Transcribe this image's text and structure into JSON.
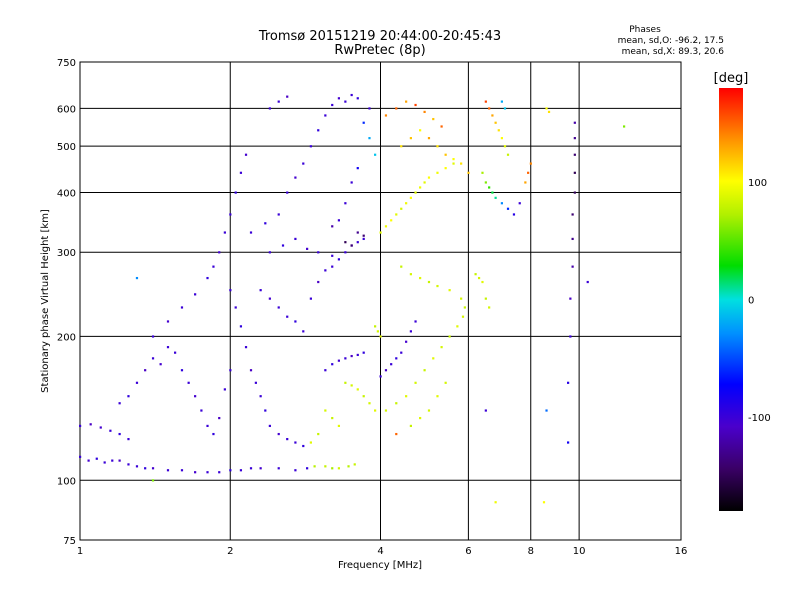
{
  "chart_data": {
    "type": "scatter",
    "title": "Tromsø 20151219 20:44:00-20:45:43",
    "subtitle": "RwPretec (8p)",
    "xlabel": "Frequency [MHz]",
    "ylabel": "Stationary phase Virtual Height [km]",
    "xscale": "log",
    "yscale": "log",
    "xlim": [
      1,
      16
    ],
    "ylim": [
      75,
      750
    ],
    "xticks": [
      1,
      2,
      4,
      6,
      8,
      10,
      16
    ],
    "yticks": [
      75,
      100,
      200,
      300,
      400,
      500,
      600,
      750
    ],
    "grid_x": [
      2,
      4,
      6,
      8,
      10
    ],
    "grid_y": [
      100,
      200,
      300,
      400,
      500,
      600
    ],
    "stats_title": "Phases",
    "stats_lines": [
      "mean, sd,O:  -96.2, 17.5",
      "mean, sd,X:  89.3, 20.6"
    ],
    "colorbar": {
      "label": "[deg]",
      "range": [
        -180,
        180
      ],
      "ticks": [
        100,
        0,
        -100
      ]
    },
    "points_note": "representative sample of the scattered points; color = phase in degrees",
    "points": [
      [
        1.0,
        130,
        -100
      ],
      [
        1.05,
        131,
        -110
      ],
      [
        1.1,
        129,
        -105
      ],
      [
        1.15,
        127,
        -100
      ],
      [
        1.2,
        125,
        -95
      ],
      [
        1.25,
        122,
        -100
      ],
      [
        1.0,
        112,
        -100
      ],
      [
        1.04,
        110,
        -105
      ],
      [
        1.08,
        111,
        -95
      ],
      [
        1.12,
        109,
        -100
      ],
      [
        1.16,
        110,
        -100
      ],
      [
        1.2,
        110,
        -110
      ],
      [
        1.25,
        108,
        -100
      ],
      [
        1.3,
        107,
        -100
      ],
      [
        1.35,
        106,
        -95
      ],
      [
        1.4,
        106,
        -105
      ],
      [
        1.5,
        105,
        -100
      ],
      [
        1.6,
        105,
        -100
      ],
      [
        1.7,
        104,
        -105
      ],
      [
        1.8,
        104,
        -100
      ],
      [
        1.9,
        104,
        -100
      ],
      [
        2.0,
        105,
        -95
      ],
      [
        2.1,
        105,
        -100
      ],
      [
        2.2,
        106,
        -100
      ],
      [
        2.3,
        106,
        -105
      ],
      [
        2.5,
        106,
        -100
      ],
      [
        2.7,
        105,
        -100
      ],
      [
        2.85,
        106,
        -95
      ],
      [
        2.95,
        107,
        75
      ],
      [
        3.1,
        107,
        80
      ],
      [
        3.2,
        106,
        70
      ],
      [
        3.3,
        106,
        85
      ],
      [
        3.45,
        107,
        75
      ],
      [
        3.55,
        108,
        80
      ],
      [
        1.2,
        145,
        -100
      ],
      [
        1.25,
        150,
        -95
      ],
      [
        1.3,
        160,
        -100
      ],
      [
        1.35,
        170,
        -110
      ],
      [
        1.4,
        180,
        -100
      ],
      [
        1.45,
        175,
        -105
      ],
      [
        1.5,
        190,
        -100
      ],
      [
        1.55,
        185,
        -100
      ],
      [
        1.6,
        170,
        -95
      ],
      [
        1.65,
        160,
        -100
      ],
      [
        1.7,
        150,
        -105
      ],
      [
        1.75,
        140,
        -100
      ],
      [
        1.8,
        130,
        -100
      ],
      [
        1.85,
        125,
        -95
      ],
      [
        1.9,
        135,
        -110
      ],
      [
        1.95,
        155,
        -100
      ],
      [
        2.0,
        170,
        -100
      ],
      [
        1.4,
        200,
        -100
      ],
      [
        1.5,
        215,
        -105
      ],
      [
        1.6,
        230,
        -100
      ],
      [
        1.7,
        245,
        -100
      ],
      [
        1.8,
        265,
        -95
      ],
      [
        1.85,
        280,
        -100
      ],
      [
        1.9,
        300,
        -105
      ],
      [
        1.95,
        330,
        -100
      ],
      [
        2.0,
        360,
        -100
      ],
      [
        2.05,
        400,
        -95
      ],
      [
        2.1,
        440,
        -100
      ],
      [
        2.15,
        480,
        -105
      ],
      [
        2.0,
        250,
        -100
      ],
      [
        2.05,
        230,
        -100
      ],
      [
        2.1,
        210,
        -95
      ],
      [
        2.15,
        190,
        -100
      ],
      [
        2.2,
        170,
        -110
      ],
      [
        2.25,
        160,
        -100
      ],
      [
        2.3,
        150,
        -100
      ],
      [
        2.35,
        140,
        -95
      ],
      [
        2.4,
        130,
        -100
      ],
      [
        2.5,
        125,
        -105
      ],
      [
        2.6,
        122,
        -100
      ],
      [
        2.7,
        120,
        -100
      ],
      [
        2.8,
        118,
        -95
      ],
      [
        2.3,
        250,
        -100
      ],
      [
        2.4,
        240,
        -105
      ],
      [
        2.5,
        230,
        -100
      ],
      [
        2.6,
        220,
        -100
      ],
      [
        2.7,
        215,
        -95
      ],
      [
        2.8,
        205,
        -100
      ],
      [
        2.9,
        240,
        -100
      ],
      [
        3.0,
        260,
        -110
      ],
      [
        3.1,
        275,
        -100
      ],
      [
        3.2,
        280,
        -100
      ],
      [
        3.3,
        290,
        -95
      ],
      [
        3.4,
        300,
        -100
      ],
      [
        3.5,
        310,
        -105
      ],
      [
        3.6,
        315,
        -100
      ],
      [
        3.7,
        320,
        -100
      ],
      [
        2.4,
        300,
        -100
      ],
      [
        2.55,
        310,
        -95
      ],
      [
        2.7,
        320,
        -100
      ],
      [
        2.85,
        305,
        -105
      ],
      [
        3.0,
        300,
        -100
      ],
      [
        3.2,
        295,
        -100
      ],
      [
        2.2,
        330,
        -100
      ],
      [
        2.35,
        345,
        -95
      ],
      [
        2.5,
        360,
        -100
      ],
      [
        2.6,
        400,
        -100
      ],
      [
        2.7,
        430,
        -105
      ],
      [
        2.8,
        460,
        -100
      ],
      [
        2.9,
        500,
        -100
      ],
      [
        3.0,
        540,
        -95
      ],
      [
        3.1,
        580,
        -100
      ],
      [
        3.2,
        610,
        -100
      ],
      [
        3.3,
        630,
        -105
      ],
      [
        3.4,
        620,
        -100
      ],
      [
        3.5,
        640,
        -100
      ],
      [
        3.6,
        630,
        -95
      ],
      [
        2.4,
        600,
        -100
      ],
      [
        2.5,
        620,
        -100
      ],
      [
        2.6,
        635,
        -110
      ],
      [
        3.8,
        600,
        -100
      ],
      [
        3.7,
        560,
        -60
      ],
      [
        3.8,
        520,
        -20
      ],
      [
        3.9,
        480,
        -10
      ],
      [
        3.6,
        450,
        -80
      ],
      [
        3.5,
        420,
        -100
      ],
      [
        3.4,
        380,
        -100
      ],
      [
        3.3,
        350,
        -100
      ],
      [
        3.2,
        340,
        -120
      ],
      [
        3.6,
        330,
        -130
      ],
      [
        3.7,
        325,
        -140
      ],
      [
        3.4,
        315,
        -150
      ],
      [
        3.5,
        310,
        -140
      ],
      [
        4.0,
        330,
        90
      ],
      [
        4.1,
        340,
        95
      ],
      [
        4.2,
        350,
        100
      ],
      [
        4.3,
        360,
        90
      ],
      [
        4.4,
        370,
        85
      ],
      [
        4.5,
        380,
        95
      ],
      [
        4.6,
        390,
        100
      ],
      [
        4.7,
        400,
        90
      ],
      [
        4.8,
        410,
        95
      ],
      [
        4.9,
        420,
        90
      ],
      [
        5.0,
        430,
        100
      ],
      [
        5.2,
        440,
        95
      ],
      [
        5.4,
        450,
        100
      ],
      [
        5.6,
        460,
        90
      ],
      [
        4.1,
        580,
        140
      ],
      [
        4.3,
        600,
        150
      ],
      [
        4.5,
        620,
        130
      ],
      [
        4.7,
        610,
        160
      ],
      [
        4.9,
        590,
        140
      ],
      [
        5.1,
        570,
        120
      ],
      [
        5.3,
        550,
        150
      ],
      [
        4.4,
        500,
        110
      ],
      [
        4.6,
        520,
        120
      ],
      [
        4.8,
        540,
        100
      ],
      [
        5.0,
        520,
        130
      ],
      [
        5.2,
        500,
        110
      ],
      [
        5.4,
        480,
        120
      ],
      [
        5.6,
        470,
        100
      ],
      [
        5.8,
        460,
        110
      ],
      [
        6.0,
        440,
        120
      ],
      [
        4.4,
        280,
        80
      ],
      [
        4.6,
        270,
        85
      ],
      [
        4.8,
        265,
        90
      ],
      [
        5.0,
        260,
        80
      ],
      [
        5.2,
        255,
        85
      ],
      [
        5.5,
        250,
        90
      ],
      [
        5.8,
        240,
        85
      ],
      [
        5.9,
        230,
        80
      ],
      [
        5.85,
        220,
        85
      ],
      [
        5.7,
        210,
        90
      ],
      [
        5.5,
        200,
        80
      ],
      [
        5.3,
        190,
        85
      ],
      [
        5.1,
        180,
        90
      ],
      [
        4.9,
        170,
        80
      ],
      [
        4.7,
        160,
        85
      ],
      [
        4.5,
        150,
        90
      ],
      [
        4.3,
        145,
        80
      ],
      [
        4.1,
        140,
        85
      ],
      [
        3.9,
        210,
        80
      ],
      [
        3.95,
        205,
        85
      ],
      [
        4.0,
        200,
        90
      ],
      [
        3.4,
        160,
        80
      ],
      [
        3.5,
        158,
        85
      ],
      [
        3.6,
        155,
        90
      ],
      [
        3.7,
        150,
        80
      ],
      [
        3.8,
        145,
        85
      ],
      [
        3.9,
        140,
        90
      ],
      [
        3.1,
        140,
        85
      ],
      [
        3.2,
        135,
        80
      ],
      [
        3.3,
        130,
        90
      ],
      [
        4.0,
        165,
        -100
      ],
      [
        4.1,
        170,
        -110
      ],
      [
        4.2,
        175,
        -100
      ],
      [
        4.3,
        180,
        -95
      ],
      [
        4.4,
        185,
        -100
      ],
      [
        4.5,
        195,
        -105
      ],
      [
        4.6,
        205,
        -100
      ],
      [
        4.7,
        215,
        -100
      ],
      [
        3.1,
        170,
        -100
      ],
      [
        3.2,
        175,
        -95
      ],
      [
        3.3,
        178,
        -105
      ],
      [
        3.4,
        180,
        -100
      ],
      [
        3.5,
        182,
        -110
      ],
      [
        3.6,
        183,
        -100
      ],
      [
        3.7,
        185,
        -95
      ],
      [
        6.5,
        620,
        160
      ],
      [
        6.6,
        600,
        150
      ],
      [
        6.7,
        580,
        130
      ],
      [
        6.8,
        560,
        120
      ],
      [
        6.9,
        540,
        110
      ],
      [
        7.0,
        520,
        100
      ],
      [
        7.1,
        500,
        90
      ],
      [
        7.2,
        480,
        80
      ],
      [
        6.4,
        440,
        70
      ],
      [
        6.5,
        420,
        60
      ],
      [
        6.6,
        410,
        40
      ],
      [
        6.7,
        400,
        20
      ],
      [
        6.8,
        390,
        10
      ],
      [
        7.0,
        380,
        -30
      ],
      [
        7.2,
        370,
        -60
      ],
      [
        7.4,
        360,
        -90
      ],
      [
        7.6,
        380,
        -100
      ],
      [
        7.8,
        420,
        130
      ],
      [
        7.9,
        440,
        150
      ],
      [
        8.0,
        460,
        140
      ],
      [
        6.2,
        270,
        80
      ],
      [
        6.3,
        265,
        85
      ],
      [
        6.4,
        260,
        90
      ],
      [
        6.5,
        240,
        80
      ],
      [
        6.6,
        230,
        85
      ],
      [
        7.0,
        620,
        -20
      ],
      [
        7.1,
        600,
        -10
      ],
      [
        8.6,
        600,
        100
      ],
      [
        8.7,
        590,
        110
      ],
      [
        9.8,
        560,
        -120
      ],
      [
        9.8,
        520,
        -130
      ],
      [
        9.8,
        480,
        -140
      ],
      [
        9.8,
        440,
        -150
      ],
      [
        9.8,
        400,
        -150
      ],
      [
        9.7,
        360,
        -140
      ],
      [
        9.7,
        320,
        -130
      ],
      [
        9.7,
        280,
        -120
      ],
      [
        9.6,
        240,
        -110
      ],
      [
        9.6,
        200,
        -100
      ],
      [
        9.5,
        160,
        -90
      ],
      [
        9.5,
        120,
        -80
      ],
      [
        8.5,
        90,
        100
      ],
      [
        6.8,
        90,
        95
      ],
      [
        6.5,
        140,
        -100
      ],
      [
        8.6,
        140,
        -40
      ],
      [
        12.3,
        550,
        60
      ],
      [
        10.4,
        260,
        -100
      ],
      [
        1.3,
        265,
        -30
      ],
      [
        1.4,
        100,
        60
      ],
      [
        2.9,
        120,
        90
      ],
      [
        3.0,
        125,
        80
      ],
      [
        4.3,
        125,
        150
      ],
      [
        4.6,
        130,
        80
      ],
      [
        4.8,
        135,
        90
      ],
      [
        5.0,
        140,
        85
      ],
      [
        5.2,
        150,
        90
      ],
      [
        5.4,
        160,
        85
      ]
    ]
  }
}
